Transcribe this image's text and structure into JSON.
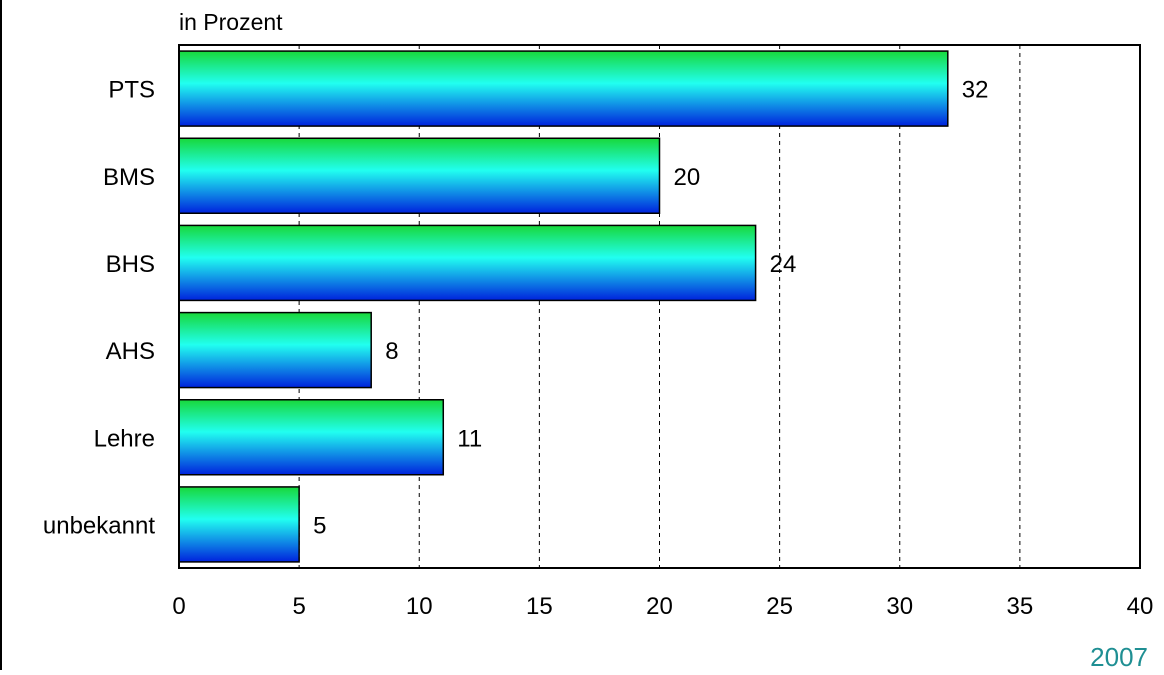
{
  "chart_data": {
    "type": "bar",
    "orientation": "horizontal",
    "unit_label": "in Prozent",
    "year_label": "2007",
    "categories": [
      "PTS",
      "BMS",
      "BHS",
      "AHS",
      "Lehre",
      "unbekannt"
    ],
    "values": [
      32,
      20,
      24,
      8,
      11,
      5
    ],
    "value_labels": [
      "32",
      "20",
      "24",
      "8",
      "11",
      "5"
    ],
    "xlim": [
      0,
      40
    ],
    "xticks": [
      "0",
      "5",
      "10",
      "15",
      "20",
      "25",
      "30",
      "35",
      "40"
    ],
    "grid": "vertical-dashed",
    "colors": {
      "bar_top": "#18d83a",
      "bar_mid": "#21fff0",
      "bar_bottom": "#0022dd",
      "bar_outline": "#000000",
      "year_text": "#1f8f93"
    }
  }
}
